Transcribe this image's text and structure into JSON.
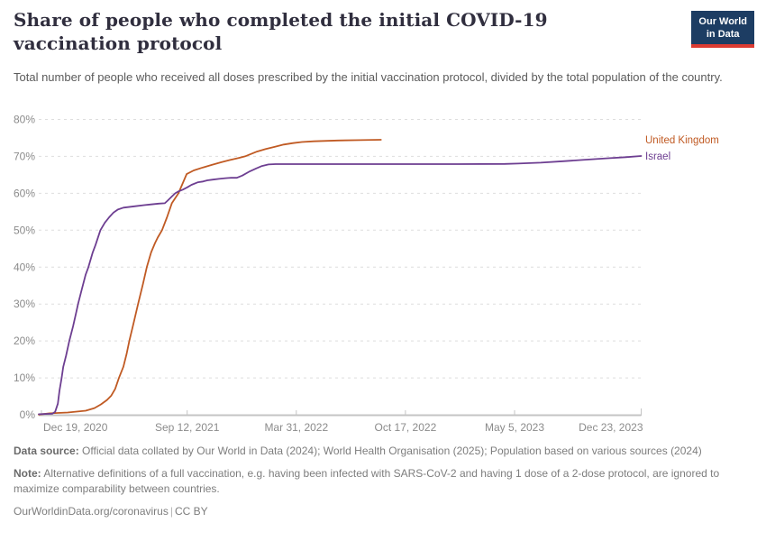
{
  "header": {
    "title": "Share of people who completed the initial COVID-19 vaccination protocol",
    "subtitle": "Total number of people who received all doses prescribed by the initial vaccination protocol, divided by the total population of the country.",
    "logo": {
      "line1": "Our World",
      "line2": "in Data"
    }
  },
  "colors": {
    "title_text": "#302e3e",
    "subtitle_text": "#5b5b5b",
    "logo_bg": "#1d3d63",
    "logo_red": "#dc3b32",
    "axis_text": "#8b8b8b",
    "gridline": "#dedede",
    "axis_line": "#c4c4c4",
    "uk_orange": "#c05a23",
    "israel_purple": "#6d3e91"
  },
  "chart_data": {
    "type": "line",
    "title": "Share of people who completed the initial COVID-19 vaccination protocol",
    "grid": true,
    "legend_position": "right-end-labels",
    "x_axis": {
      "domain": [
        "2020-12-14",
        "2023-12-23"
      ],
      "ticks": [
        {
          "date": "2020-12-19",
          "label": "Dec 19, 2020"
        },
        {
          "date": "2021-09-12",
          "label": "Sep 12, 2021"
        },
        {
          "date": "2022-03-31",
          "label": "Mar 31, 2022"
        },
        {
          "date": "2022-10-17",
          "label": "Oct 17, 2022"
        },
        {
          "date": "2023-05-05",
          "label": "May 5, 2023"
        },
        {
          "date": "2023-12-23",
          "label": "Dec 23, 2023"
        }
      ]
    },
    "y_axis": {
      "range": [
        0,
        80
      ],
      "ticks": [
        0,
        10,
        20,
        30,
        40,
        50,
        60,
        70,
        80
      ],
      "unit": "%"
    },
    "series": [
      {
        "name": "United Kingdom",
        "color": "#c05a23",
        "points": [
          [
            "2020-12-14",
            0.05
          ],
          [
            "2021-01-03",
            0.4
          ],
          [
            "2021-02-05",
            0.6
          ],
          [
            "2021-03-10",
            1.1
          ],
          [
            "2021-03-26",
            1.8
          ],
          [
            "2021-04-07",
            2.8
          ],
          [
            "2021-04-18",
            4.0
          ],
          [
            "2021-04-26",
            5.2
          ],
          [
            "2021-05-03",
            7.0
          ],
          [
            "2021-05-10",
            10.0
          ],
          [
            "2021-05-18",
            13.0
          ],
          [
            "2021-05-24",
            16.5
          ],
          [
            "2021-05-29",
            20.0
          ],
          [
            "2021-06-06",
            25.0
          ],
          [
            "2021-06-14",
            30.0
          ],
          [
            "2021-06-23",
            35.5
          ],
          [
            "2021-06-30",
            40.0
          ],
          [
            "2021-07-08",
            44.0
          ],
          [
            "2021-07-15",
            46.5
          ],
          [
            "2021-07-20",
            48.0
          ],
          [
            "2021-07-28",
            50.0
          ],
          [
            "2021-08-06",
            53.5
          ],
          [
            "2021-08-15",
            57.3
          ],
          [
            "2021-08-27",
            60.0
          ],
          [
            "2021-09-11",
            65.2
          ],
          [
            "2021-09-24",
            66.2
          ],
          [
            "2021-10-11",
            67.0
          ],
          [
            "2021-10-27",
            67.7
          ],
          [
            "2021-11-13",
            68.4
          ],
          [
            "2021-11-29",
            69.0
          ],
          [
            "2021-12-16",
            69.6
          ],
          [
            "2021-12-27",
            70.0
          ],
          [
            "2022-01-18",
            71.3
          ],
          [
            "2022-02-03",
            72.0
          ],
          [
            "2022-02-20",
            72.6
          ],
          [
            "2022-03-08",
            73.2
          ],
          [
            "2022-03-25",
            73.6
          ],
          [
            "2022-04-10",
            73.9
          ],
          [
            "2022-05-02",
            74.1
          ],
          [
            "2022-06-15",
            74.3
          ],
          [
            "2022-07-26",
            74.4
          ],
          [
            "2022-09-02",
            74.5
          ]
        ]
      },
      {
        "name": "Israel",
        "color": "#6d3e91",
        "points": [
          [
            "2020-12-14",
            0.15
          ],
          [
            "2021-01-08",
            0.3
          ],
          [
            "2021-01-13",
            0.8
          ],
          [
            "2021-01-18",
            3.0
          ],
          [
            "2021-01-21",
            6.5
          ],
          [
            "2021-01-25",
            10.0
          ],
          [
            "2021-01-28",
            13.0
          ],
          [
            "2021-02-02",
            16.0
          ],
          [
            "2021-02-08",
            20.0
          ],
          [
            "2021-02-15",
            24.0
          ],
          [
            "2021-02-21",
            28.0
          ],
          [
            "2021-02-24",
            30.0
          ],
          [
            "2021-03-03",
            34.0
          ],
          [
            "2021-03-10",
            38.0
          ],
          [
            "2021-03-15",
            40.0
          ],
          [
            "2021-03-23",
            44.0
          ],
          [
            "2021-03-28",
            46.0
          ],
          [
            "2021-04-06",
            50.0
          ],
          [
            "2021-04-14",
            52.0
          ],
          [
            "2021-04-22",
            53.5
          ],
          [
            "2021-04-30",
            54.8
          ],
          [
            "2021-05-08",
            55.6
          ],
          [
            "2021-05-18",
            56.1
          ],
          [
            "2021-06-09",
            56.5
          ],
          [
            "2021-06-25",
            56.8
          ],
          [
            "2021-07-08",
            57.0
          ],
          [
            "2021-07-22",
            57.2
          ],
          [
            "2021-08-02",
            57.3
          ],
          [
            "2021-08-07",
            58.0
          ],
          [
            "2021-08-14",
            59.0
          ],
          [
            "2021-08-21",
            60.0
          ],
          [
            "2021-08-27",
            60.5
          ],
          [
            "2021-09-04",
            61.0
          ],
          [
            "2021-09-12",
            61.6
          ],
          [
            "2021-09-20",
            62.3
          ],
          [
            "2021-10-02",
            63.0
          ],
          [
            "2021-10-11",
            63.2
          ],
          [
            "2021-10-19",
            63.5
          ],
          [
            "2021-10-29",
            63.7
          ],
          [
            "2021-11-09",
            63.9
          ],
          [
            "2021-11-21",
            64.1
          ],
          [
            "2021-12-01",
            64.2
          ],
          [
            "2021-12-12",
            64.2
          ],
          [
            "2021-12-22",
            64.8
          ],
          [
            "2022-01-03",
            65.8
          ],
          [
            "2022-01-16",
            66.7
          ],
          [
            "2022-01-27",
            67.4
          ],
          [
            "2022-02-08",
            67.8
          ],
          [
            "2022-02-21",
            67.9
          ],
          [
            "2022-05-05",
            67.9
          ],
          [
            "2022-08-28",
            67.9
          ],
          [
            "2023-01-08",
            67.9
          ],
          [
            "2023-04-17",
            67.95
          ],
          [
            "2023-05-11",
            68.05
          ],
          [
            "2023-06-22",
            68.3
          ],
          [
            "2023-08-02",
            68.7
          ],
          [
            "2023-09-12",
            69.1
          ],
          [
            "2023-10-23",
            69.5
          ],
          [
            "2023-11-25",
            69.8
          ],
          [
            "2023-12-23",
            70.1
          ]
        ]
      }
    ]
  },
  "footer": {
    "datasource_label": "Data source:",
    "datasource_text": "Official data collated by Our World in Data (2024); World Health Organisation (2025); Population based on various sources (2024)",
    "note_label": "Note:",
    "note_text": "Alternative definitions of a full vaccination, e.g. having been infected with SARS-CoV-2 and having 1 dose of a 2-dose protocol, are ignored to maximize comparability between countries.",
    "url": "OurWorldinData.org/coronavirus",
    "separator": "|",
    "license": "CC BY"
  }
}
